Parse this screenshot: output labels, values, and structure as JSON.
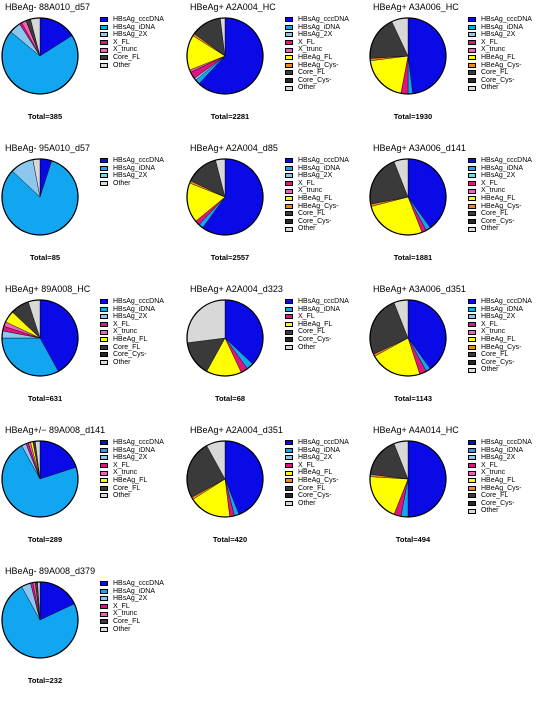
{
  "colors": {
    "HBsAg_cccDNA": "#0a0ae6",
    "HBsAg_iDNA": "#13a6f0",
    "HBsAg_2X": "#8cc7ef",
    "X_FL": "#e0157f",
    "X_trunc": "#f25fb9",
    "HBeAg_FL": "#ffff00",
    "HBeAg_Cys-": "#f08a16",
    "Core_FL": "#3a3a3a",
    "Core_Cys-": "#262626",
    "Other": "#d8d8d8"
  },
  "chart_data": [
    {
      "type": "pie",
      "title": "HBeAg- 88A010_d57",
      "total_label": "Total=385",
      "legend": [
        "HBsAg_cccDNA",
        "HBsAg_iDNA",
        "HBsAg_2X",
        "X_FL",
        "X_trunc",
        "Core_FL",
        "Other"
      ],
      "slices": [
        {
          "label": "HBsAg_cccDNA",
          "value": 16
        },
        {
          "label": "HBsAg_iDNA",
          "value": 70
        },
        {
          "label": "HBsAg_2X",
          "value": 5
        },
        {
          "label": "X_FL",
          "value": 1
        },
        {
          "label": "X_trunc",
          "value": 2
        },
        {
          "label": "Core_FL",
          "value": 2
        },
        {
          "label": "Other",
          "value": 4
        }
      ]
    },
    {
      "type": "pie",
      "title": "HBeAg+ A2A004_HC",
      "total_label": "Total=2281",
      "legend": [
        "HBsAg_cccDNA",
        "HBsAg_iDNA",
        "HBsAg_2X",
        "X_FL",
        "X_trunc",
        "HBeAg_FL",
        "HBeAg_Cys-",
        "Core_FL",
        "Core_Cys-",
        "Other"
      ],
      "slices": [
        {
          "label": "HBsAg_cccDNA",
          "value": 62
        },
        {
          "label": "HBsAg_iDNA",
          "value": 2
        },
        {
          "label": "HBsAg_2X",
          "value": 1
        },
        {
          "label": "X_FL",
          "value": 3
        },
        {
          "label": "X_trunc",
          "value": 1
        },
        {
          "label": "HBeAg_FL",
          "value": 15
        },
        {
          "label": "HBeAg_Cys-",
          "value": 1
        },
        {
          "label": "Core_FL",
          "value": 13
        },
        {
          "label": "Other",
          "value": 2
        }
      ]
    },
    {
      "type": "pie",
      "title": "HBeAg+ A3A006_HC",
      "total_label": "Total=1930",
      "legend": [
        "HBsAg_cccDNA",
        "HBsAg_iDNA",
        "HBsAg_2X",
        "X_FL",
        "X_trunc",
        "HBeAg_FL",
        "HBeAg_Cys-",
        "Core_FL",
        "Core_Cys-",
        "Other"
      ],
      "slices": [
        {
          "label": "HBsAg_cccDNA",
          "value": 48
        },
        {
          "label": "HBsAg_iDNA",
          "value": 2
        },
        {
          "label": "X_FL",
          "value": 3
        },
        {
          "label": "HBeAg_FL",
          "value": 20
        },
        {
          "label": "HBeAg_Cys-",
          "value": 1
        },
        {
          "label": "Core_FL",
          "value": 19
        },
        {
          "label": "Other",
          "value": 7
        }
      ]
    },
    {
      "type": "pie",
      "title": "HBeAg- 95A010_d57",
      "total_label": "Total=85",
      "legend": [
        "HBsAg_cccDNA",
        "HBsAg_iDNA",
        "HBsAg_2X",
        "Other"
      ],
      "slices": [
        {
          "label": "HBsAg_cccDNA",
          "value": 5
        },
        {
          "label": "HBsAg_iDNA",
          "value": 82
        },
        {
          "label": "HBsAg_2X",
          "value": 10
        },
        {
          "label": "Other",
          "value": 3
        }
      ]
    },
    {
      "type": "pie",
      "title": "HBeAg+ A2A004_d85",
      "total_label": "Total=2557",
      "legend": [
        "HBsAg_cccDNA",
        "HBsAg_iDNA",
        "HBsAg_2X",
        "X_FL",
        "X_trunc",
        "HBeAg_FL",
        "HBeAg_Cys-",
        "Core_FL",
        "Core_Cys-",
        "Other"
      ],
      "slices": [
        {
          "label": "HBsAg_cccDNA",
          "value": 60
        },
        {
          "label": "HBsAg_iDNA",
          "value": 2
        },
        {
          "label": "X_FL",
          "value": 2
        },
        {
          "label": "HBeAg_FL",
          "value": 17
        },
        {
          "label": "HBeAg_Cys-",
          "value": 1
        },
        {
          "label": "Core_FL",
          "value": 14
        },
        {
          "label": "Other",
          "value": 4
        }
      ]
    },
    {
      "type": "pie",
      "title": "HBeAg+ A3A006_d141",
      "total_label": "Total=1881",
      "legend": [
        "HBsAg_cccDNA",
        "HBsAg_iDNA",
        "HBsAg_2X",
        "X_FL",
        "X_trunc",
        "HBeAg_FL",
        "HBeAg_Cys-",
        "Core_FL",
        "Core_Cys-",
        "Other"
      ],
      "slices": [
        {
          "label": "HBsAg_cccDNA",
          "value": 40
        },
        {
          "label": "HBsAg_iDNA",
          "value": 2
        },
        {
          "label": "X_FL",
          "value": 2
        },
        {
          "label": "HBeAg_FL",
          "value": 27
        },
        {
          "label": "HBeAg_Cys-",
          "value": 1
        },
        {
          "label": "Core_FL",
          "value": 22
        },
        {
          "label": "Other",
          "value": 6
        }
      ]
    },
    {
      "type": "pie",
      "title": "HBeAg+ 89A008_HC",
      "total_label": "Total=631",
      "legend": [
        "HBsAg_cccDNA",
        "HBsAg_iDNA",
        "HBsAg_2X",
        "X_FL",
        "X_trunc",
        "HBeAg_FL",
        "Core_FL",
        "Core_Cys-",
        "Other"
      ],
      "slices": [
        {
          "label": "HBsAg_cccDNA",
          "value": 42
        },
        {
          "label": "HBsAg_iDNA",
          "value": 33
        },
        {
          "label": "HBsAg_2X",
          "value": 3
        },
        {
          "label": "X_FL",
          "value": 2
        },
        {
          "label": "X_trunc",
          "value": 2
        },
        {
          "label": "HBeAg_FL",
          "value": 5
        },
        {
          "label": "Core_FL",
          "value": 8
        },
        {
          "label": "Other",
          "value": 5
        }
      ]
    },
    {
      "type": "pie",
      "title": "HBeAg+ A2A004_d323",
      "total_label": "Total=68",
      "legend": [
        "HBsAg_cccDNA",
        "HBsAg_iDNA",
        "X_FL",
        "HBeAg_FL",
        "Core_FL",
        "Core_Cys-",
        "Other"
      ],
      "slices": [
        {
          "label": "HBsAg_cccDNA",
          "value": 37
        },
        {
          "label": "HBsAg_iDNA",
          "value": 3
        },
        {
          "label": "X_FL",
          "value": 3
        },
        {
          "label": "HBeAg_FL",
          "value": 15
        },
        {
          "label": "Core_FL",
          "value": 15
        },
        {
          "label": "Other",
          "value": 27
        }
      ]
    },
    {
      "type": "pie",
      "title": "HBeAg+ A3A006_d351",
      "total_label": "Total=1143",
      "legend": [
        "HBsAg_cccDNA",
        "HBsAg_iDNA",
        "HBsAg_2X",
        "X_FL",
        "X_trunc",
        "HBeAg_FL",
        "HBeAg_Cys-",
        "Core_FL",
        "Core_Cys-",
        "Other"
      ],
      "slices": [
        {
          "label": "HBsAg_cccDNA",
          "value": 40
        },
        {
          "label": "HBsAg_iDNA",
          "value": 2
        },
        {
          "label": "X_FL",
          "value": 3
        },
        {
          "label": "HBeAg_FL",
          "value": 22
        },
        {
          "label": "HBeAg_Cys-",
          "value": 1
        },
        {
          "label": "Core_FL",
          "value": 26
        },
        {
          "label": "Other",
          "value": 6
        }
      ]
    },
    {
      "type": "pie",
      "title": "HBeAg+/− 89A008_d141",
      "total_label": "Total=289",
      "legend": [
        "HBsAg_cccDNA",
        "HBsAg_iDNA",
        "HBsAg_2X",
        "X_FL",
        "X_trunc",
        "HBeAg_FL",
        "Core_FL",
        "Other"
      ],
      "slices": [
        {
          "label": "HBsAg_cccDNA",
          "value": 20
        },
        {
          "label": "HBsAg_iDNA",
          "value": 72
        },
        {
          "label": "HBsAg_2X",
          "value": 2
        },
        {
          "label": "X_FL",
          "value": 1
        },
        {
          "label": "X_trunc",
          "value": 1
        },
        {
          "label": "HBeAg_FL",
          "value": 1
        },
        {
          "label": "Core_FL",
          "value": 1
        },
        {
          "label": "Other",
          "value": 2
        }
      ]
    },
    {
      "type": "pie",
      "title": "HBeAg+ A2A004_d351",
      "total_label": "Total=420",
      "legend": [
        "HBsAg_cccDNA",
        "HBsAg_iDNA",
        "HBsAg_2X",
        "X_FL",
        "HBeAg_FL",
        "HBeAg_Cys-",
        "Core_FL",
        "Core_Cys-",
        "Other"
      ],
      "slices": [
        {
          "label": "HBsAg_cccDNA",
          "value": 44
        },
        {
          "label": "HBsAg_iDNA",
          "value": 2
        },
        {
          "label": "X_FL",
          "value": 2
        },
        {
          "label": "HBeAg_FL",
          "value": 18
        },
        {
          "label": "HBeAg_Cys-",
          "value": 1
        },
        {
          "label": "Core_FL",
          "value": 25
        },
        {
          "label": "Other",
          "value": 8
        }
      ]
    },
    {
      "type": "pie",
      "title": "HBeAg+ A4A014_HC",
      "total_label": "Total=494",
      "legend": [
        "HBsAg_cccDNA",
        "HBsAg_iDNA",
        "HBsAg_2X",
        "X_FL",
        "X_trunc",
        "HBeAg_FL",
        "HBeAg_Cys-",
        "Core_FL",
        "Core_Cys-",
        "Other"
      ],
      "slices": [
        {
          "label": "HBsAg_cccDNA",
          "value": 50
        },
        {
          "label": "HBsAg_iDNA",
          "value": 3
        },
        {
          "label": "X_FL",
          "value": 3
        },
        {
          "label": "HBeAg_FL",
          "value": 20
        },
        {
          "label": "HBeAg_Cys-",
          "value": 1
        },
        {
          "label": "Core_FL",
          "value": 17
        },
        {
          "label": "Other",
          "value": 6
        }
      ]
    },
    {
      "type": "pie",
      "title": "HBeAg- 89A008_d379",
      "total_label": "Total=232",
      "legend": [
        "HBsAg_cccDNA",
        "HBsAg_iDNA",
        "HBsAg_2X",
        "X_FL",
        "X_trunc",
        "Core_FL",
        "Other"
      ],
      "slices": [
        {
          "label": "HBsAg_cccDNA",
          "value": 18
        },
        {
          "label": "HBsAg_iDNA",
          "value": 74
        },
        {
          "label": "HBsAg_2X",
          "value": 4
        },
        {
          "label": "X_FL",
          "value": 1
        },
        {
          "label": "X_trunc",
          "value": 1
        },
        {
          "label": "Core_FL",
          "value": 1
        },
        {
          "label": "Other",
          "value": 1
        }
      ]
    }
  ]
}
